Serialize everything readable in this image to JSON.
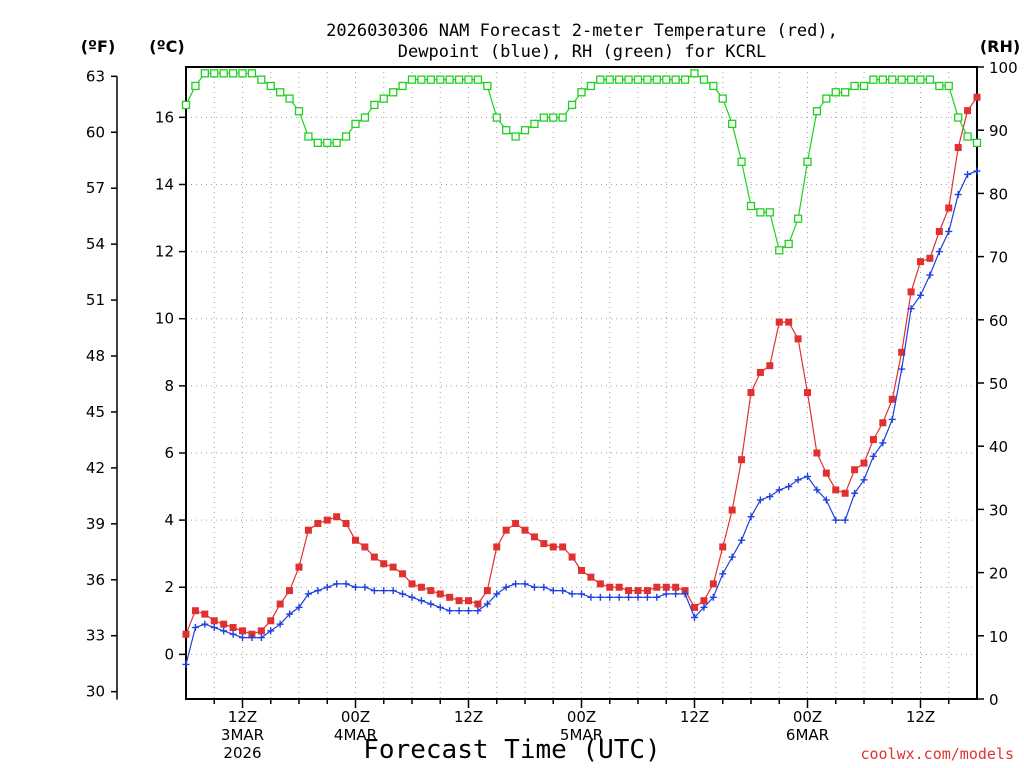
{
  "chart_data": {
    "type": "line",
    "title_line1": "2026030306 NAM Forecast 2-meter Temperature (red),",
    "title_line2": "Dewpoint (blue), RH (green) for KCRL",
    "xlabel": "Forecast Time (UTC)",
    "credit": "coolwx.com/models",
    "units": {
      "fahrenheit": "(ºF)",
      "celsius": "(ºC)",
      "rh": "(RH)"
    },
    "x_start_hour": 6,
    "x_end_hour": 90,
    "x_ticks": [
      {
        "hour": 12,
        "lines": [
          "12Z",
          "3MAR",
          "2026"
        ]
      },
      {
        "hour": 24,
        "lines": [
          "00Z",
          "4MAR"
        ]
      },
      {
        "hour": 36,
        "lines": [
          "12Z"
        ]
      },
      {
        "hour": 48,
        "lines": [
          "00Z",
          "5MAR"
        ]
      },
      {
        "hour": 60,
        "lines": [
          "12Z"
        ]
      },
      {
        "hour": 72,
        "lines": [
          "00Z",
          "6MAR"
        ]
      },
      {
        "hour": 84,
        "lines": [
          "12Z"
        ]
      }
    ],
    "y_celsius": {
      "min": -1.33,
      "max": 17.5,
      "ticks": [
        0,
        2,
        4,
        6,
        8,
        10,
        12,
        14,
        16
      ]
    },
    "y_fahrenheit": {
      "ticks": [
        30,
        33,
        36,
        39,
        42,
        45,
        48,
        51,
        54,
        57,
        60,
        63
      ]
    },
    "y_rh": {
      "min": 0,
      "max": 100,
      "ticks": [
        0,
        10,
        20,
        30,
        40,
        50,
        60,
        70,
        80,
        90,
        100
      ]
    },
    "grid": true,
    "colors": {
      "temperature": "#e03030",
      "dewpoint": "#2040e0",
      "rh": "#20d020"
    },
    "series": [
      {
        "name": "Temperature",
        "axis": "celsius",
        "marker": "square",
        "values": [
          0.6,
          1.3,
          1.2,
          1.0,
          0.9,
          0.8,
          0.7,
          0.6,
          0.7,
          1.0,
          1.5,
          1.9,
          2.6,
          3.7,
          3.9,
          4.0,
          4.1,
          3.9,
          3.4,
          3.2,
          2.9,
          2.7,
          2.6,
          2.4,
          2.1,
          2.0,
          1.9,
          1.8,
          1.7,
          1.6,
          1.6,
          1.5,
          1.9,
          3.2,
          3.7,
          3.9,
          3.7,
          3.5,
          3.3,
          3.2,
          3.2,
          2.9,
          2.5,
          2.3,
          2.1,
          2.0,
          2.0,
          1.9,
          1.9,
          1.9,
          2.0,
          2.0,
          2.0,
          1.9,
          1.4,
          1.6,
          2.1,
          3.2,
          4.3,
          5.8,
          7.8,
          8.4,
          8.6,
          9.9,
          9.9,
          9.4,
          7.8,
          6.0,
          5.4,
          4.9,
          4.8,
          5.5,
          5.7,
          6.4,
          6.9,
          7.6,
          9.0,
          10.8,
          11.7,
          11.8,
          12.6,
          13.3,
          15.1,
          16.2,
          16.6
        ]
      },
      {
        "name": "Dewpoint",
        "axis": "celsius",
        "marker": "plus",
        "values": [
          -0.3,
          0.8,
          0.9,
          0.8,
          0.7,
          0.6,
          0.5,
          0.5,
          0.5,
          0.7,
          0.9,
          1.2,
          1.4,
          1.8,
          1.9,
          2.0,
          2.1,
          2.1,
          2.0,
          2.0,
          1.9,
          1.9,
          1.9,
          1.8,
          1.7,
          1.6,
          1.5,
          1.4,
          1.3,
          1.3,
          1.3,
          1.3,
          1.5,
          1.8,
          2.0,
          2.1,
          2.1,
          2.0,
          2.0,
          1.9,
          1.9,
          1.8,
          1.8,
          1.7,
          1.7,
          1.7,
          1.7,
          1.7,
          1.7,
          1.7,
          1.7,
          1.8,
          1.8,
          1.8,
          1.1,
          1.4,
          1.7,
          2.4,
          2.9,
          3.4,
          4.1,
          4.6,
          4.7,
          4.9,
          5.0,
          5.2,
          5.3,
          4.9,
          4.6,
          4.0,
          4.0,
          4.8,
          5.2,
          5.9,
          6.3,
          7.0,
          8.5,
          10.3,
          10.7,
          11.3,
          12.0,
          12.6,
          13.7,
          14.3,
          14.4
        ]
      },
      {
        "name": "RH",
        "axis": "rh",
        "marker": "open-square",
        "values": [
          94,
          97,
          99,
          99,
          99,
          99,
          99,
          99,
          98,
          97,
          96,
          95,
          93,
          89,
          88,
          88,
          88,
          89,
          91,
          92,
          94,
          95,
          96,
          97,
          98,
          98,
          98,
          98,
          98,
          98,
          98,
          98,
          97,
          92,
          90,
          89,
          90,
          91,
          92,
          92,
          92,
          94,
          96,
          97,
          98,
          98,
          98,
          98,
          98,
          98,
          98,
          98,
          98,
          98,
          99,
          98,
          97,
          95,
          91,
          85,
          78,
          77,
          77,
          71,
          72,
          76,
          85,
          93,
          95,
          96,
          96,
          97,
          97,
          98,
          98,
          98,
          98,
          98,
          98,
          98,
          97,
          97,
          92,
          89,
          88
        ]
      }
    ]
  }
}
